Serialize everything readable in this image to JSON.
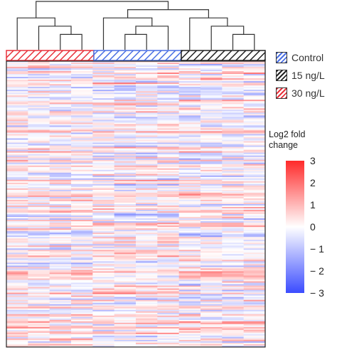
{
  "chart_data": {
    "type": "heatmap",
    "title": "",
    "xlabel": "",
    "ylabel": "",
    "groups": [
      {
        "name": "30 ng/L",
        "color": "#e8323c",
        "samples": 4
      },
      {
        "name": "Control",
        "color": "#4a6fe3",
        "samples": 4
      },
      {
        "name": "15 ng/L",
        "color": "#222222",
        "samples": 4
      }
    ],
    "legend": {
      "placement": "right",
      "items": [
        {
          "label": "Control",
          "color": "#4a6fe3"
        },
        {
          "label": "15 ng/L",
          "color": "#222222"
        },
        {
          "label": "30 ng/L",
          "color": "#e8323c"
        }
      ]
    },
    "color_scale": {
      "title_line1": "Log2 fold",
      "title_line2": "change",
      "min": -3,
      "max": 3,
      "low_color": "#3b4cff",
      "mid_color": "#ffffff",
      "high_color": "#ff2a2a",
      "ticks": [
        {
          "value": 3,
          "label": "3"
        },
        {
          "value": 2,
          "label": "2"
        },
        {
          "value": 1,
          "label": "1"
        },
        {
          "value": 0,
          "label": "0"
        },
        {
          "value": -1,
          "label": "− 1"
        },
        {
          "value": -2,
          "label": "− 2"
        },
        {
          "value": -3,
          "label": "− 3"
        }
      ]
    },
    "n_rows": 200,
    "n_cols": 12,
    "dendrogram_merges": [
      {
        "left": "c2",
        "right": "c3"
      },
      {
        "left": "c1",
        "right": "m0"
      },
      {
        "left": "c0",
        "right": "m1"
      },
      {
        "left": "c5",
        "right": "c6"
      },
      {
        "left": "m3",
        "right": "c7"
      },
      {
        "left": "c4",
        "right": "m4"
      },
      {
        "left": "c10",
        "right": "c11"
      },
      {
        "left": "c9",
        "right": "m6"
      },
      {
        "left": "c8",
        "right": "m7"
      },
      {
        "left": "m5",
        "right": "m8"
      },
      {
        "left": "m2",
        "right": "m9"
      }
    ]
  }
}
